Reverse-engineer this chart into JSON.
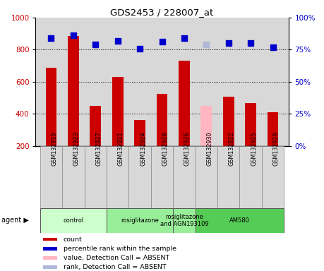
{
  "title": "GDS2453 / 228007_at",
  "samples": [
    "GSM132919",
    "GSM132923",
    "GSM132927",
    "GSM132921",
    "GSM132924",
    "GSM132928",
    "GSM132926",
    "GSM132930",
    "GSM132922",
    "GSM132925",
    "GSM132929"
  ],
  "counts": [
    685,
    885,
    450,
    630,
    360,
    525,
    730,
    450,
    505,
    465,
    410
  ],
  "percentile_ranks": [
    84,
    86,
    79,
    82,
    76,
    81,
    84,
    null,
    80,
    80,
    77
  ],
  "absent_count": [
    null,
    null,
    null,
    null,
    null,
    null,
    null,
    450,
    null,
    null,
    null
  ],
  "absent_rank": [
    null,
    null,
    null,
    null,
    null,
    null,
    null,
    79,
    null,
    null,
    null
  ],
  "count_color": "#cc0000",
  "absent_count_color": "#ffb6c1",
  "absent_rank_color": "#b0b8d8",
  "percentile_color": "#0000cc",
  "chart_bg": "#d8d8d8",
  "sample_bg": "#d8d8d8",
  "ylim_left": [
    200,
    1000
  ],
  "ylim_right": [
    0,
    100
  ],
  "yticks_left": [
    200,
    400,
    600,
    800,
    1000
  ],
  "yticks_right": [
    0,
    25,
    50,
    75,
    100
  ],
  "agent_groups": [
    {
      "label": "control",
      "start": 0,
      "end": 3,
      "color": "#ccffcc"
    },
    {
      "label": "rosiglitazone",
      "start": 3,
      "end": 6,
      "color": "#99ee99"
    },
    {
      "label": "rosiglitazone\nand AGN193109",
      "start": 6,
      "end": 7,
      "color": "#99ee99"
    },
    {
      "label": "AM580",
      "start": 7,
      "end": 11,
      "color": "#55cc55"
    }
  ],
  "legend_items": [
    {
      "color": "#cc0000",
      "label": "count"
    },
    {
      "color": "#0000cc",
      "label": "percentile rank within the sample"
    },
    {
      "color": "#ffb6c1",
      "label": "value, Detection Call = ABSENT"
    },
    {
      "color": "#b0b8d8",
      "label": "rank, Detection Call = ABSENT"
    }
  ],
  "bar_width": 0.5,
  "dot_size": 40
}
